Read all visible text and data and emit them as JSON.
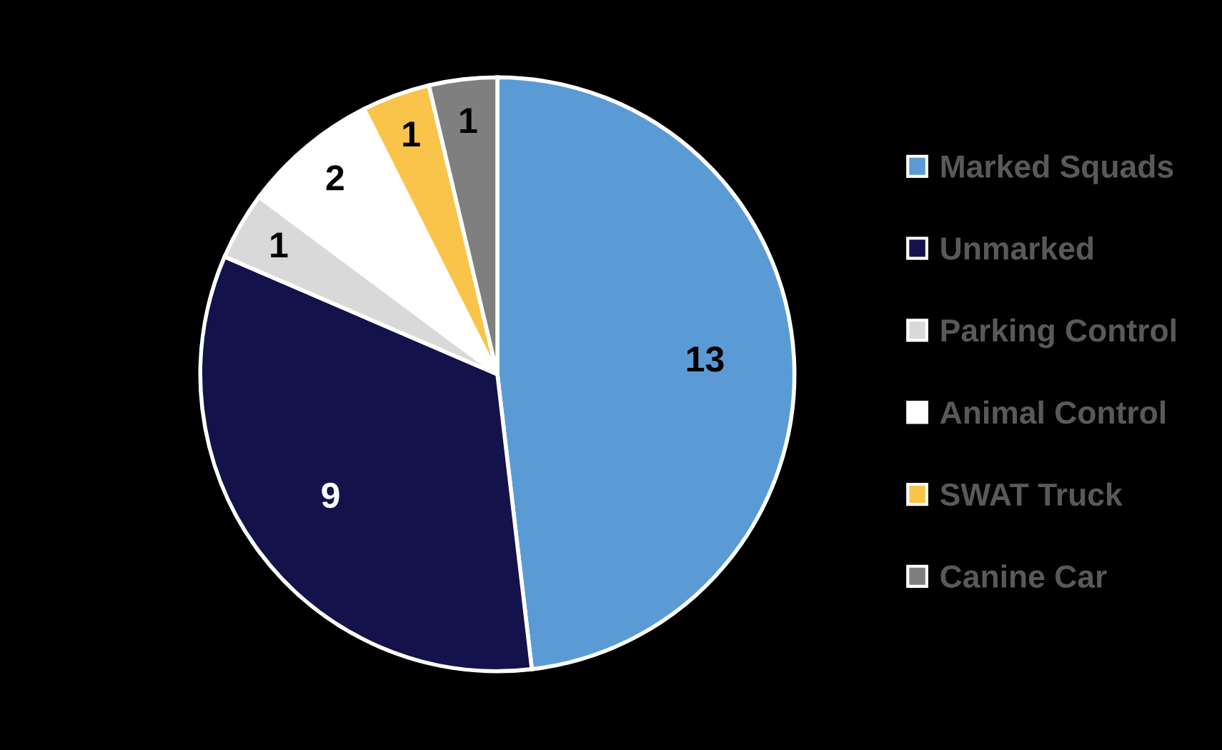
{
  "chart_data": {
    "type": "pie",
    "categories": [
      "Marked Squads",
      "Unmarked",
      "Parking Control",
      "Animal Control",
      "SWAT Truck",
      "Canine Car"
    ],
    "values": [
      13,
      9,
      1,
      2,
      1,
      1
    ],
    "colors": [
      "#5b9bd5",
      "#14124a",
      "#d9d9d9",
      "#ffffff",
      "#fac44a",
      "#7f7f7f"
    ],
    "data_labels": true,
    "legend": "right"
  }
}
